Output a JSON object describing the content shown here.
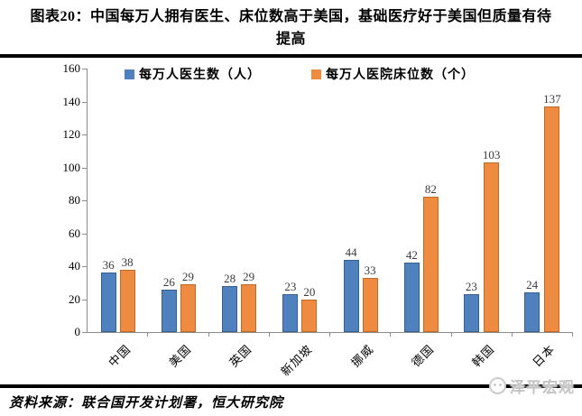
{
  "title": "图表20：中国每万人拥有医生、床位数高于美国，基础医疗好于美国但质量有待提高",
  "source": "资料来源：联合国开发计划署，恒大研究院",
  "watermark": "泽平宏观",
  "colors": {
    "doctor_blue": "#4E81BD",
    "doctor_blue_border": "#36618E",
    "bed_orange": "#EF8B40",
    "bed_orange_border": "#BE6A28",
    "axis_gray": "#8C8C8C",
    "watermark_gray": "#C4C4C4",
    "rule_black": "#000000"
  },
  "chart_data": {
    "type": "bar",
    "categories": [
      "中国",
      "美国",
      "英国",
      "新加坡",
      "挪威",
      "德国",
      "韩国",
      "日本"
    ],
    "series": [
      {
        "name": "每万人医生数（人）",
        "fill": "#4E81BD",
        "border": "#36618E",
        "values": [
          36,
          26,
          28,
          23,
          44,
          42,
          23,
          24
        ]
      },
      {
        "name": "每万人医院床位数（个）",
        "fill": "#EF8B40",
        "border": "#BE6A28",
        "values": [
          38,
          29,
          29,
          20,
          33,
          82,
          103,
          137
        ]
      }
    ],
    "ylim": [
      0,
      160
    ],
    "ytick_step": 20,
    "grid": false,
    "legend_position": "top",
    "value_labels": true
  }
}
